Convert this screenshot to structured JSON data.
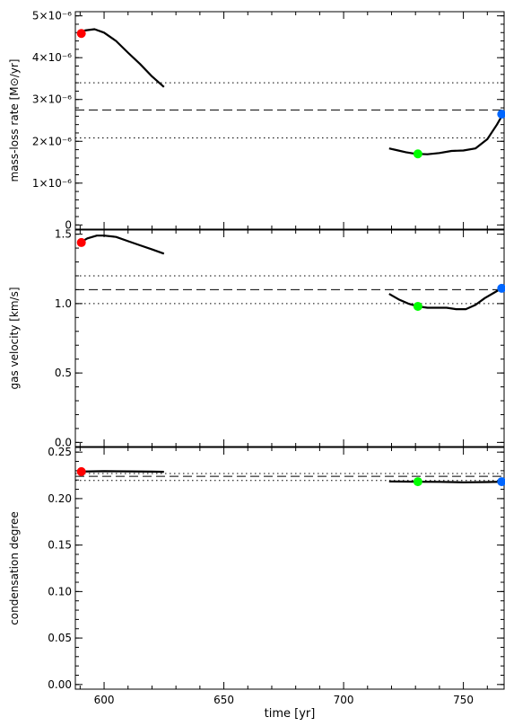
{
  "figure": {
    "xlabel": "time [yr]",
    "xlim": [
      588,
      767
    ],
    "xticks": [
      600,
      650,
      700,
      750
    ],
    "xtick_labels": [
      "600",
      "650",
      "700",
      "750"
    ]
  },
  "chart_data": [
    {
      "type": "line",
      "ylabel": "mass-loss rate [M⊙/yr]",
      "ylim": [
        -1e-07,
        5.1e-06
      ],
      "yticks": [
        0,
        1e-06,
        2e-06,
        3e-06,
        4e-06,
        5e-06
      ],
      "ytick_labels": [
        "0",
        "1×10⁻⁶",
        "2×10⁻⁶",
        "3×10⁻⁶",
        "4×10⁻⁶",
        "5×10⁻⁶"
      ],
      "hlines": [
        {
          "y": 2.75e-06,
          "style": "dashed"
        },
        {
          "y": 3.4e-06,
          "style": "dotted"
        },
        {
          "y": 2.08e-06,
          "style": "dotted"
        }
      ],
      "series": [
        {
          "x": [
            589,
            592,
            596,
            600,
            605,
            610,
            615,
            620,
            625
          ],
          "values": [
            4.55e-06,
            4.65e-06,
            4.68e-06,
            4.6e-06,
            4.4e-06,
            4.12e-06,
            3.85e-06,
            3.55e-06,
            3.3e-06
          ]
        },
        {
          "x": [
            719,
            722,
            726,
            730,
            735,
            740,
            745,
            750,
            755,
            760,
            764,
            767
          ],
          "values": [
            1.83e-06,
            1.79e-06,
            1.74e-06,
            1.7e-06,
            1.69e-06,
            1.72e-06,
            1.77e-06,
            1.78e-06,
            1.83e-06,
            2.05e-06,
            2.4e-06,
            2.7e-06
          ]
        }
      ],
      "markers": [
        {
          "x": 590.5,
          "y": 4.58e-06,
          "color": "#ff0000"
        },
        {
          "x": 731,
          "y": 1.7e-06,
          "color": "#00ff00"
        },
        {
          "x": 766,
          "y": 2.65e-06,
          "color": "#0066ff"
        }
      ]
    },
    {
      "type": "line",
      "ylabel": "gas velocity [km/s]",
      "ylim": [
        -0.03,
        1.53
      ],
      "yticks": [
        0.0,
        0.5,
        1.0,
        1.5
      ],
      "ytick_labels": [
        "0.0",
        "0.5",
        "1.0",
        "1.5"
      ],
      "hlines": [
        {
          "y": 1.1,
          "style": "dashed"
        },
        {
          "y": 1.2,
          "style": "dotted"
        },
        {
          "y": 1.0,
          "style": "dotted"
        }
      ],
      "series": [
        {
          "x": [
            589,
            593,
            597,
            600,
            605,
            610,
            615,
            620,
            625
          ],
          "values": [
            1.43,
            1.47,
            1.49,
            1.49,
            1.48,
            1.45,
            1.42,
            1.39,
            1.36
          ]
        },
        {
          "x": [
            719,
            723,
            727,
            731,
            735,
            739,
            743,
            747,
            751,
            755,
            759,
            763,
            767
          ],
          "values": [
            1.07,
            1.03,
            1.0,
            0.98,
            0.97,
            0.97,
            0.97,
            0.96,
            0.96,
            0.99,
            1.04,
            1.08,
            1.12
          ]
        }
      ],
      "markers": [
        {
          "x": 590.5,
          "y": 1.44,
          "color": "#ff0000"
        },
        {
          "x": 731,
          "y": 0.98,
          "color": "#00ff00"
        },
        {
          "x": 766,
          "y": 1.11,
          "color": "#0066ff"
        }
      ]
    },
    {
      "type": "line",
      "ylabel": "condensation degree",
      "ylim": [
        -0.005,
        0.255
      ],
      "yticks": [
        0.0,
        0.05,
        0.1,
        0.15,
        0.2,
        0.25
      ],
      "ytick_labels": [
        "0.00",
        "0.05",
        "0.10",
        "0.15",
        "0.20",
        "0.25"
      ],
      "hlines": [
        {
          "y": 0.224,
          "style": "dashed"
        },
        {
          "y": 0.227,
          "style": "dotted"
        },
        {
          "y": 0.2195,
          "style": "dotted"
        }
      ],
      "series": [
        {
          "x": [
            589,
            600,
            610,
            620,
            625
          ],
          "values": [
            0.229,
            0.2295,
            0.2293,
            0.229,
            0.2288
          ]
        },
        {
          "x": [
            719,
            730,
            740,
            750,
            760,
            767
          ],
          "values": [
            0.2185,
            0.2182,
            0.218,
            0.2175,
            0.2178,
            0.2182
          ]
        }
      ],
      "markers": [
        {
          "x": 590.5,
          "y": 0.229,
          "color": "#ff0000"
        },
        {
          "x": 731,
          "y": 0.2182,
          "color": "#00ff00"
        },
        {
          "x": 766,
          "y": 0.2182,
          "color": "#0066ff"
        }
      ]
    }
  ]
}
